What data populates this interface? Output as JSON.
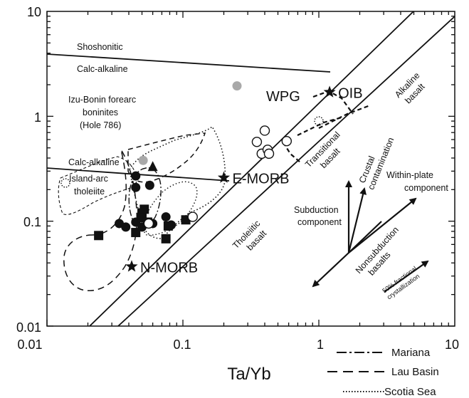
{
  "chart_data": {
    "type": "scatter",
    "xlabel": "Ta/Yb",
    "ylabel": "",
    "x_scale": "log",
    "y_scale": "log",
    "xlim": [
      0.01,
      10
    ],
    "ylim": [
      0.01,
      10
    ],
    "x_ticks": [
      "0.01",
      "0.1",
      "1",
      "10"
    ],
    "y_ticks": [
      "0.01",
      "0.1",
      "1",
      "10"
    ],
    "grid": false,
    "legend_position": "bottom-right",
    "legend": [
      {
        "label": "Mariana",
        "style": "dash-dot"
      },
      {
        "label": "Lau Basin",
        "style": "dashed"
      },
      {
        "label": "Scotia Sea",
        "style": "dotted"
      }
    ],
    "reference_points": [
      {
        "label": "OIB",
        "x": 1.2,
        "y": 1.7
      },
      {
        "label": "E-MORB",
        "x": 0.2,
        "y": 0.26
      },
      {
        "label": "N-MORB",
        "x": 0.042,
        "y": 0.037
      }
    ],
    "series": [
      {
        "marker": "filled-circle",
        "color": "#111111",
        "points": [
          [
            0.045,
            0.21
          ],
          [
            0.057,
            0.22
          ],
          [
            0.045,
            0.27
          ],
          [
            0.034,
            0.095
          ],
          [
            0.038,
            0.088
          ],
          [
            0.045,
            0.098
          ],
          [
            0.05,
            0.088
          ],
          [
            0.075,
            0.11
          ],
          [
            0.082,
            0.092
          ],
          [
            0.06,
            0.095
          ]
        ]
      },
      {
        "marker": "filled-square",
        "color": "#111111",
        "points": [
          [
            0.024,
            0.073
          ],
          [
            0.045,
            0.078
          ],
          [
            0.05,
            0.12
          ],
          [
            0.052,
            0.13
          ],
          [
            0.05,
            0.108
          ],
          [
            0.055,
            0.098
          ],
          [
            0.075,
            0.068
          ],
          [
            0.078,
            0.09
          ],
          [
            0.105,
            0.103
          ]
        ]
      },
      {
        "marker": "filled-triangle",
        "color": "#111111",
        "points": [
          [
            0.06,
            0.33
          ]
        ]
      },
      {
        "marker": "open-circle",
        "color": "#111111",
        "points": [
          [
            0.4,
            0.73
          ],
          [
            0.35,
            0.57
          ],
          [
            0.38,
            0.44
          ],
          [
            0.42,
            0.48
          ],
          [
            0.43,
            0.44
          ],
          [
            0.58,
            0.58
          ],
          [
            0.056,
            0.095
          ],
          [
            0.118,
            0.11
          ]
        ]
      },
      {
        "marker": "gray-circle",
        "color": "#a9a9a9",
        "points": [
          [
            0.25,
            1.95
          ],
          [
            0.051,
            0.38
          ]
        ]
      }
    ],
    "field_labels": {
      "shoshonitic": "Shoshonitic",
      "calc_alkaline_upper": "Calc-alkaline",
      "calc_alkaline_lower": "Calc-alkaline",
      "island_arc_1": "Island-arc",
      "island_arc_2": "tholeiite",
      "izu_1": "Izu-Bonin forearc",
      "izu_2": "boninites",
      "izu_3": "(Hole 786)",
      "wpg": "WPG",
      "alkaline_1": "Alkaline",
      "alkaline_2": "basalt",
      "transitional_1": "Transitional",
      "transitional_2": "basalt",
      "tholeiitic_1": "Tholeiitic",
      "tholeiitic_2": "basalt",
      "crustal_1": "Crustal",
      "crustal_2": "contamination",
      "within_plate_1": "Within-plate",
      "within_plate_2": "component",
      "subduction_1": "Subduction",
      "subduction_2": "component",
      "nonsubduction_1": "Nonsubduction",
      "nonsubduction_2": "basalts",
      "fractional_1": "50% fractional",
      "fractional_2": "crystallization"
    }
  }
}
